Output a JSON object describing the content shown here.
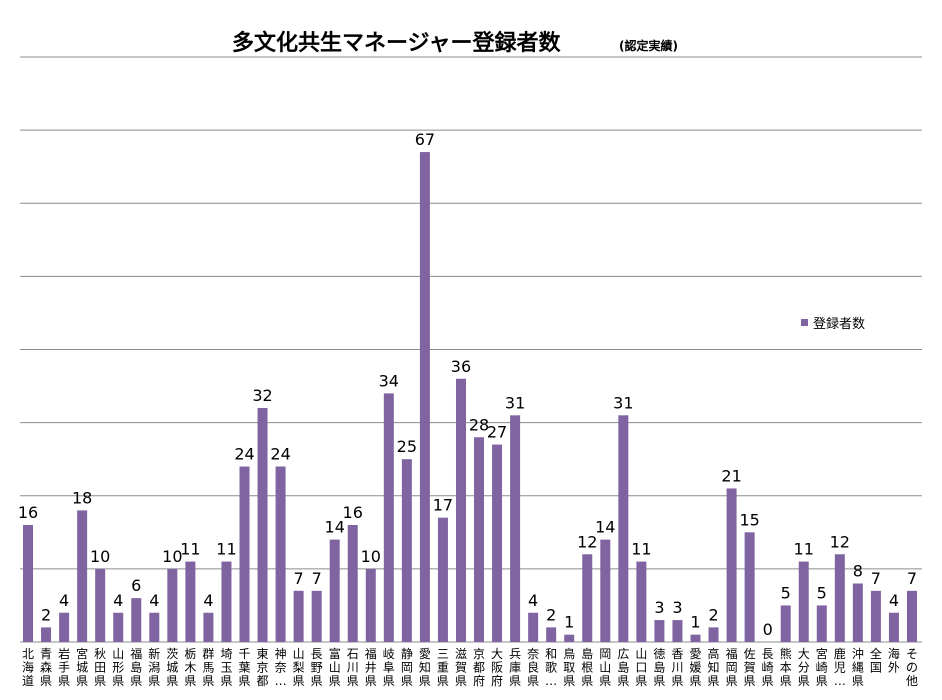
{
  "chart_data": {
    "type": "bar",
    "title": "多文化共生マネージャー登録者数",
    "subtitle": "(認定実績)",
    "categories": [
      "北海道",
      "青森県",
      "岩手県",
      "宮城県",
      "秋田県",
      "山形県",
      "福島県",
      "新潟県",
      "茨城県",
      "栃木県",
      "群馬県",
      "埼玉県",
      "千葉県",
      "東京都",
      "神奈…",
      "山梨県",
      "長野県",
      "富山県",
      "石川県",
      "福井県",
      "岐阜県",
      "静岡県",
      "愛知県",
      "三重県",
      "滋賀県",
      "京都府",
      "大阪府",
      "兵庫県",
      "奈良県",
      "和歌…",
      "鳥取県",
      "島根県",
      "岡山県",
      "広島県",
      "山口県",
      "徳島県",
      "香川県",
      "愛媛県",
      "高知県",
      "福岡県",
      "佐賀県",
      "長崎県",
      "熊本県",
      "大分県",
      "宮崎県",
      "鹿児…",
      "沖縄県",
      "全国",
      "海外",
      "その他"
    ],
    "series": [
      {
        "name": "登録者数",
        "color": "#8064a2",
        "values": [
          16,
          2,
          4,
          18,
          10,
          4,
          6,
          4,
          10,
          11,
          4,
          11,
          24,
          32,
          24,
          7,
          7,
          14,
          16,
          10,
          34,
          25,
          67,
          17,
          36,
          28,
          27,
          31,
          4,
          2,
          1,
          12,
          14,
          31,
          11,
          3,
          3,
          1,
          2,
          21,
          15,
          0,
          5,
          11,
          5,
          12,
          8,
          7,
          4,
          7
        ]
      }
    ],
    "ylim": [
      0,
      80
    ],
    "grid": true,
    "legend_position": "right"
  }
}
